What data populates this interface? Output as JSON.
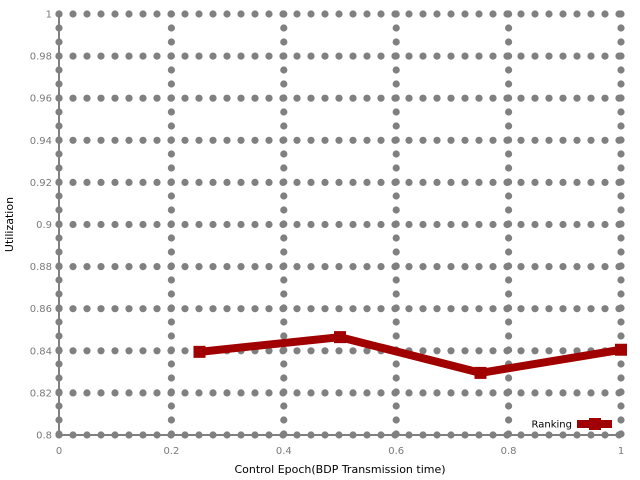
{
  "chart_data": {
    "type": "line",
    "title": "",
    "xlabel": "Control Epoch(BDP Transmission time)",
    "ylabel": "Utilization",
    "xlim": [
      0,
      1
    ],
    "ylim": [
      0.8,
      1
    ],
    "x_ticks": [
      0,
      0.2,
      0.4,
      0.6,
      0.8,
      1
    ],
    "x_tick_labels": [
      "0",
      "0.2",
      "0.4",
      "0.6",
      "0.8",
      "1"
    ],
    "y_ticks": [
      0.8,
      0.82,
      0.84,
      0.86,
      0.88,
      0.9,
      0.92,
      0.94,
      0.96,
      0.98,
      1
    ],
    "y_tick_labels": [
      "0.8",
      "0.82",
      "0.84",
      "0.86",
      "0.88",
      "0.9",
      "0.92",
      "0.94",
      "0.96",
      "0.98",
      "1"
    ],
    "grid": true,
    "legend_position": "bottom-right",
    "series": [
      {
        "name": "Ranking",
        "x": [
          0.25,
          0.5,
          0.75,
          1
        ],
        "y": [
          0.8395,
          0.8465,
          0.8295,
          0.8405
        ],
        "color": "#a00000",
        "marker": "square"
      }
    ],
    "colors": {
      "grid": "#808080",
      "axis": "#808080",
      "series": "#a00000"
    }
  }
}
